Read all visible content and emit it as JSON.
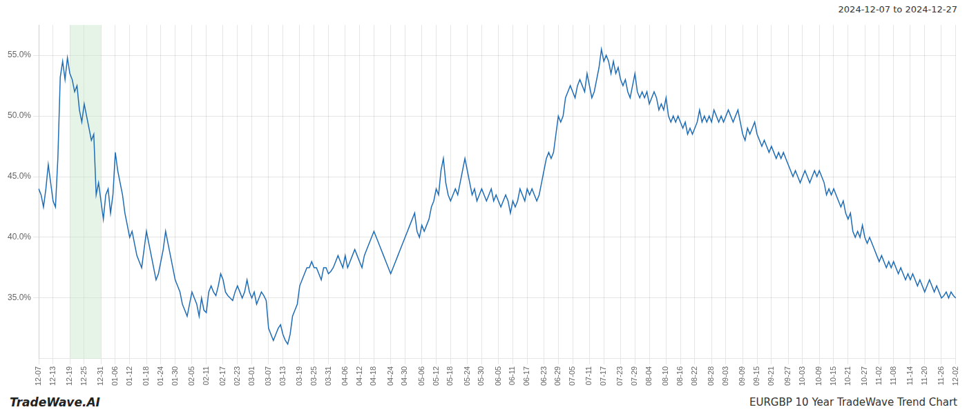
{
  "chart_data": {
    "type": "line",
    "title": "EURGBP 10 Year TradeWave Trend Chart",
    "subtitle": "2024-12-07 to 2024-12-27",
    "annotations": [
      "TradeWave.AI"
    ],
    "color": "#1e6cb5",
    "grid": true,
    "ylim": [
      30.0,
      57.5
    ],
    "yticks": [
      {
        "value": 35.0,
        "label": "35.0%"
      },
      {
        "value": 40.0,
        "label": "40.0%"
      },
      {
        "value": 45.0,
        "label": "45.0%"
      },
      {
        "value": 50.0,
        "label": "50.0%"
      },
      {
        "value": 55.0,
        "label": "55.0%"
      }
    ],
    "shaded_span": {
      "from": "12-19",
      "to": "12-31",
      "color": "#c8e6c9"
    },
    "categories": [
      "12-07",
      null,
      null,
      null,
      null,
      null,
      "12-13",
      null,
      null,
      null,
      null,
      null,
      null,
      "12-19",
      null,
      null,
      null,
      null,
      null,
      "12-25",
      null,
      null,
      null,
      null,
      null,
      null,
      "12-31",
      null,
      null,
      null,
      null,
      null,
      "01-06",
      null,
      null,
      null,
      null,
      null,
      "01-12",
      null,
      null,
      null,
      null,
      null,
      null,
      "01-18",
      null,
      null,
      null,
      null,
      null,
      "01-24",
      null,
      null,
      null,
      null,
      null,
      "01-30",
      null,
      null,
      null,
      null,
      null,
      null,
      "02-05",
      null,
      null,
      null,
      null,
      null,
      "02-11",
      null,
      null,
      null,
      null,
      null,
      null,
      "02-17",
      null,
      null,
      null,
      null,
      null,
      "02-23",
      null,
      null,
      null,
      null,
      null,
      "03-01",
      null,
      null,
      null,
      null,
      null,
      null,
      "03-07",
      null,
      null,
      null,
      null,
      null,
      "03-13",
      null,
      null,
      null,
      null,
      null,
      null,
      "03-19",
      null,
      null,
      null,
      null,
      null,
      "03-25",
      null,
      null,
      null,
      null,
      null,
      "03-31",
      null,
      null,
      null,
      null,
      null,
      null,
      "04-06",
      null,
      null,
      null,
      null,
      null,
      "04-12",
      null,
      null,
      null,
      null,
      null,
      "04-18",
      null,
      null,
      null,
      null,
      null,
      null,
      "04-24",
      null,
      null,
      null,
      null,
      null,
      "04-30",
      null,
      null,
      null,
      null,
      null,
      null,
      "05-06",
      null,
      null,
      null,
      null,
      null,
      "05-12",
      null,
      null,
      null,
      null,
      null,
      "05-18",
      null,
      null,
      null,
      null,
      null,
      null,
      "05-24",
      null,
      null,
      null,
      null,
      null,
      "05-30",
      null,
      null,
      null,
      null,
      null,
      null,
      "06-05",
      null,
      null,
      null,
      null,
      null,
      "06-11",
      null,
      null,
      null,
      null,
      null,
      "06-17",
      null,
      null,
      null,
      null,
      null,
      null,
      "06-23",
      null,
      null,
      null,
      null,
      null,
      "06-29",
      null,
      null,
      null,
      null,
      null,
      "07-05",
      null,
      null,
      null,
      null,
      null,
      null,
      "07-11",
      null,
      null,
      null,
      null,
      null,
      "07-17",
      null,
      null,
      null,
      null,
      null,
      null,
      "07-23",
      null,
      null,
      null,
      null,
      null,
      "07-29",
      null,
      null,
      null,
      null,
      null,
      "08-04",
      null,
      null,
      null,
      null,
      null,
      null,
      "08-10",
      null,
      null,
      null,
      null,
      null,
      "08-16",
      null,
      null,
      null,
      null,
      null,
      "08-22",
      null,
      null,
      null,
      null,
      null,
      null,
      "08-28",
      null,
      null,
      null,
      null,
      null,
      "09-03",
      null,
      null,
      null,
      null,
      null,
      null,
      "09-09",
      null,
      null,
      null,
      null,
      null,
      "09-15",
      null,
      null,
      null,
      null,
      null,
      "09-21",
      null,
      null,
      null,
      null,
      null,
      null,
      "09-27",
      null,
      null,
      null,
      null,
      null,
      "10-03",
      null,
      null,
      null,
      null,
      null,
      null,
      "10-09",
      null,
      null,
      null,
      null,
      null,
      "10-15",
      null,
      null,
      null,
      null,
      null,
      "10-21",
      null,
      null,
      null,
      null,
      null,
      null,
      "10-27",
      null,
      null,
      null,
      null,
      null,
      "11-02",
      null,
      null,
      null,
      null,
      null,
      "11-08",
      null,
      null,
      null,
      null,
      null,
      null,
      "11-14",
      null,
      null,
      null,
      null,
      null,
      "11-20",
      null,
      null,
      null,
      null,
      null,
      null,
      "11-26",
      null,
      null,
      null,
      null,
      null,
      "12-02"
    ],
    "values": [
      44.0,
      43.5,
      42.5,
      44.0,
      46.0,
      44.5,
      43.0,
      42.5,
      46.5,
      53.2,
      54.5,
      53.0,
      54.8,
      53.5,
      53.0,
      52.0,
      52.5,
      50.5,
      49.5,
      51.0,
      50.0,
      49.0,
      48.0,
      48.5,
      43.5,
      44.5,
      43.0,
      41.5,
      43.5,
      44.0,
      42.0,
      43.5,
      47.0,
      45.5,
      44.5,
      43.5,
      42.0,
      41.0,
      40.0,
      40.5,
      39.5,
      38.5,
      38.0,
      37.5,
      39.0,
      40.5,
      39.5,
      38.5,
      37.5,
      36.5,
      37.0,
      38.0,
      39.0,
      40.5,
      39.5,
      38.5,
      37.5,
      36.5,
      36.0,
      35.5,
      34.5,
      34.0,
      33.5,
      34.5,
      35.5,
      35.0,
      34.5,
      33.5,
      35.0,
      34.0,
      33.8,
      35.5,
      36.0,
      35.5,
      35.2,
      36.0,
      37.0,
      36.5,
      35.5,
      35.2,
      35.0,
      34.8,
      35.5,
      36.0,
      35.5,
      35.0,
      35.5,
      36.5,
      35.5,
      35.0,
      35.5,
      34.5,
      35.0,
      35.5,
      35.2,
      34.8,
      32.5,
      32.0,
      31.5,
      32.0,
      32.5,
      32.8,
      32.0,
      31.5,
      31.2,
      32.0,
      33.5,
      34.0,
      34.5,
      36.0,
      36.5,
      37.0,
      37.5,
      37.5,
      38.0,
      37.5,
      37.5,
      37.0,
      36.5,
      37.5,
      37.5,
      37.0,
      37.2,
      37.5,
      38.0,
      38.5,
      38.0,
      37.5,
      38.5,
      37.5,
      38.0,
      38.5,
      39.0,
      38.5,
      38.0,
      37.5,
      38.5,
      39.0,
      39.5,
      40.0,
      40.5,
      40.0,
      39.5,
      39.0,
      38.5,
      38.0,
      37.5,
      37.0,
      37.5,
      38.0,
      38.5,
      39.0,
      39.5,
      40.0,
      40.5,
      41.0,
      41.5,
      42.0,
      40.5,
      40.0,
      41.0,
      40.5,
      41.0,
      41.5,
      42.5,
      43.0,
      44.0,
      43.5,
      45.5,
      46.5,
      44.5,
      43.5,
      43.0,
      43.5,
      44.0,
      43.5,
      44.5,
      45.5,
      46.5,
      45.5,
      44.5,
      43.5,
      44.0,
      43.0,
      43.5,
      44.0,
      43.5,
      43.0,
      43.5,
      44.0,
      43.0,
      43.5,
      43.0,
      42.5,
      43.0,
      43.5,
      43.0,
      42.0,
      43.0,
      42.5,
      43.0,
      44.0,
      43.5,
      43.0,
      44.0,
      43.5,
      44.0,
      43.5,
      43.0,
      43.5,
      44.5,
      45.5,
      46.5,
      47.0,
      46.5,
      47.0,
      48.5,
      50.0,
      49.5,
      50.0,
      51.5,
      52.0,
      52.5,
      52.0,
      51.5,
      52.5,
      53.0,
      52.5,
      52.0,
      53.5,
      52.5,
      51.5,
      52.0,
      53.0,
      54.0,
      55.5,
      54.5,
      55.0,
      54.5,
      53.5,
      54.5,
      53.5,
      54.0,
      53.0,
      52.5,
      53.0,
      52.0,
      51.5,
      52.5,
      53.5,
      52.0,
      51.5,
      52.0,
      51.5,
      52.0,
      51.0,
      51.5,
      52.0,
      51.5,
      50.5,
      51.0,
      50.5,
      51.5,
      50.0,
      49.5,
      50.0,
      49.5,
      50.0,
      49.5,
      49.0,
      49.5,
      48.5,
      49.0,
      48.5,
      49.0,
      49.5,
      50.5,
      49.5,
      50.0,
      49.5,
      50.0,
      49.5,
      50.5,
      50.0,
      49.5,
      50.0,
      49.5,
      50.0,
      50.5,
      50.0,
      49.5,
      50.0,
      50.5,
      49.5,
      48.5,
      48.0,
      49.0,
      48.5,
      49.0,
      49.5,
      48.5,
      48.0,
      47.5,
      48.0,
      47.5,
      47.0,
      47.5,
      47.0,
      46.5,
      47.0,
      46.5,
      47.0,
      46.5,
      46.0,
      45.5,
      45.0,
      45.5,
      45.0,
      44.5,
      45.0,
      45.5,
      45.0,
      44.5,
      45.0,
      45.5,
      45.0,
      45.5,
      45.0,
      44.5,
      43.5,
      44.0,
      43.5,
      44.0,
      43.5,
      43.0,
      42.5,
      43.0,
      42.0,
      41.5,
      42.0,
      40.5,
      40.0,
      40.5,
      40.0,
      41.0,
      40.0,
      39.5,
      40.0,
      39.5,
      39.0,
      38.5,
      38.0,
      38.5,
      38.0,
      37.5,
      38.0,
      37.5,
      38.0,
      37.5,
      37.0,
      37.5,
      37.0,
      36.5,
      37.0,
      36.5,
      37.0,
      36.5,
      36.0,
      36.5,
      36.0,
      35.5,
      36.0,
      36.5,
      36.0,
      35.5,
      36.0,
      35.5,
      35.0,
      35.2,
      35.5,
      35.0,
      35.5,
      35.2,
      35.0
    ]
  }
}
